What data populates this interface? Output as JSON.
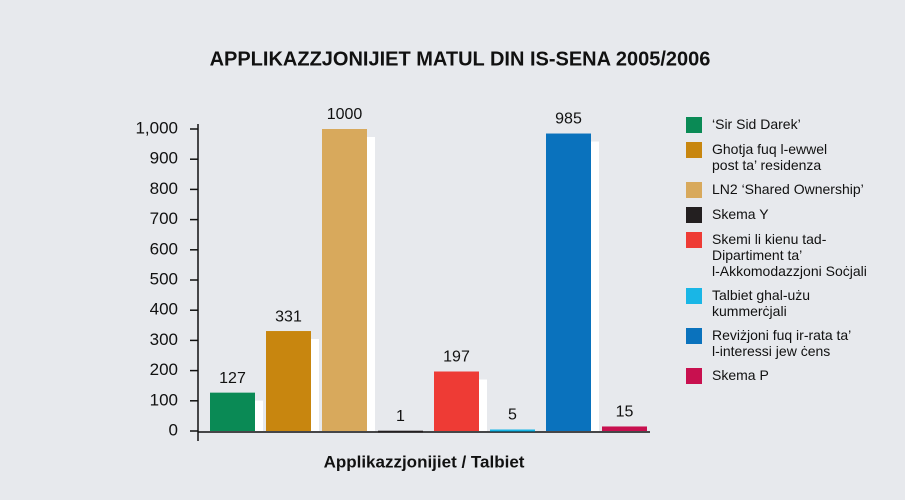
{
  "chart_data": {
    "type": "bar",
    "title": "APPLIKAZZJONIJIET MATUL DIN IS-SENA 2005/2006",
    "x_label": "Applikazzjonijiet / Talbiet",
    "categories": [
      "‘Sir Sid Darek’",
      "Ghotja fuq l-ewwel\npost ta’ residenza",
      "LN2 ‘Shared Ownership’",
      "Skema Y",
      "Skemi li kienu tad-\nDipartiment ta’\nl-Akkomodazzjoni Soċjali",
      "Talbiet ghal-użu\nkummerċjali",
      "Reviżjoni fuq ir-rata ta’\nl-interessi jew ċens",
      "Skema P"
    ],
    "values": [
      127,
      331,
      1000,
      1,
      197,
      5,
      985,
      15
    ],
    "colors": [
      "#0a8a55",
      "#c8860f",
      "#d8a95c",
      "#231f20",
      "#ee3b35",
      "#19b6e6",
      "#0a72bd",
      "#c8104f"
    ],
    "ylim": [
      0,
      1000
    ],
    "yticks": [
      0,
      100,
      200,
      300,
      400,
      500,
      600,
      700,
      800,
      900,
      {
        "value": 1000,
        "label": "1,000"
      }
    ]
  }
}
